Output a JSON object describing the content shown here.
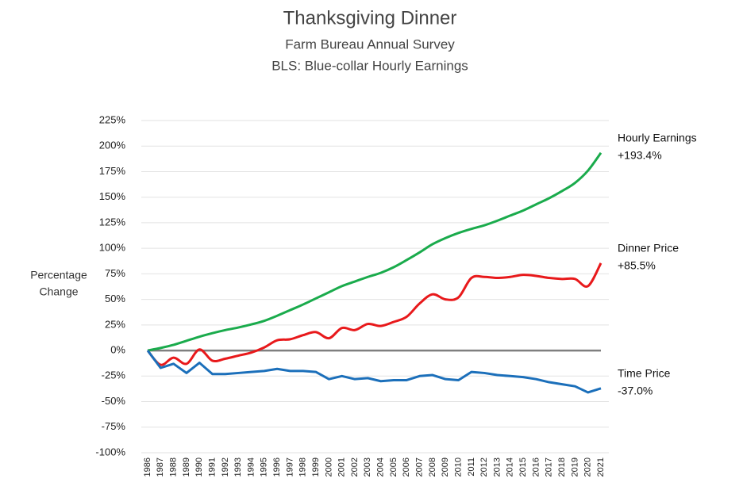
{
  "chart_data": {
    "type": "line",
    "title": "Thanksgiving Dinner",
    "subtitle": [
      "Farm Bureau Annual Survey",
      "BLS: Blue-collar Hourly Earnings"
    ],
    "y_label": [
      "Percentage",
      "Change"
    ],
    "categories": [
      "1986",
      "1987",
      "1988",
      "1989",
      "1990",
      "1991",
      "1992",
      "1993",
      "1994",
      "1995",
      "1996",
      "1997",
      "1998",
      "1999",
      "2000",
      "2001",
      "2002",
      "2003",
      "2004",
      "2005",
      "2006",
      "2007",
      "2008",
      "2009",
      "2010",
      "2011",
      "2012",
      "2013",
      "2014",
      "2015",
      "2016",
      "2017",
      "2018",
      "2019",
      "2020",
      "2021"
    ],
    "series": [
      {
        "name": "Hourly Earnings",
        "end_label": "+193.4%",
        "color": "#1aab4c",
        "smooth": true,
        "values": [
          0,
          2.5,
          5.5,
          9.5,
          13.5,
          17,
          20,
          22.5,
          25.5,
          29,
          34,
          39.5,
          45,
          51,
          57,
          63,
          67.5,
          72,
          76,
          81.5,
          88.5,
          96,
          104,
          110,
          115,
          119,
          122.5,
          127,
          132,
          137,
          143,
          149,
          156,
          164,
          176,
          193.4
        ]
      },
      {
        "name": "Dinner Price",
        "end_label": "+85.5%",
        "color": "#e8191b",
        "smooth": true,
        "values": [
          0,
          -14,
          -7,
          -13,
          1,
          -10,
          -8,
          -5,
          -2,
          3,
          10,
          11,
          15,
          18,
          12,
          22,
          20,
          26,
          24,
          28,
          33,
          46,
          55,
          50,
          52,
          71,
          72,
          71,
          72,
          74,
          73,
          71,
          70,
          70,
          63,
          85.5
        ]
      },
      {
        "name": "Time Price",
        "end_label": "-37.0%",
        "color": "#1b6fba",
        "smooth": false,
        "values": [
          0,
          -17,
          -13,
          -22,
          -12,
          -23,
          -23,
          -22,
          -21,
          -20,
          -18,
          -20,
          -20,
          -21,
          -28,
          -25,
          -28,
          -27,
          -30,
          -29,
          -29,
          -25,
          -24,
          -28,
          -29,
          -21,
          -22,
          -24,
          -25,
          -26,
          -28,
          -31,
          -33,
          -35,
          -41,
          -37
        ]
      }
    ],
    "ylim": [
      -100,
      225
    ],
    "yticks": [
      {
        "value": -100,
        "label": "-100%"
      },
      {
        "value": -75,
        "label": "-75%"
      },
      {
        "value": -50,
        "label": "-50%"
      },
      {
        "value": -25,
        "label": "-25%"
      },
      {
        "value": 0,
        "label": "0%"
      },
      {
        "value": 25,
        "label": "25%"
      },
      {
        "value": 50,
        "label": "50%"
      },
      {
        "value": 75,
        "label": "75%"
      },
      {
        "value": 100,
        "label": "100%"
      },
      {
        "value": 125,
        "label": "125%"
      },
      {
        "value": 150,
        "label": "150%"
      },
      {
        "value": 175,
        "label": "175%"
      },
      {
        "value": 200,
        "label": "200%"
      },
      {
        "value": 225,
        "label": "225%"
      }
    ],
    "grid": true,
    "zero_line_color": "#7f7f7f"
  }
}
